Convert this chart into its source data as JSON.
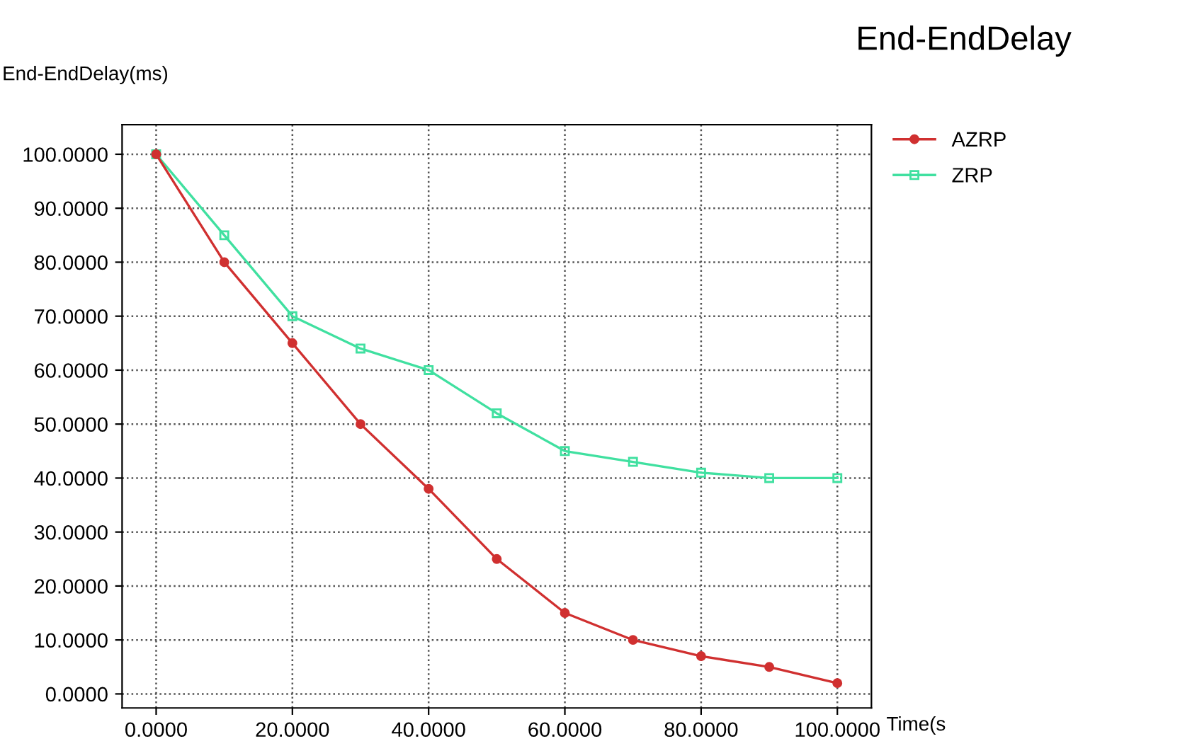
{
  "chart_data": {
    "type": "line",
    "title": "End-EndDelay",
    "ylabel": "End-EndDelay(ms)",
    "xlabel": "Time(s",
    "x": [
      0,
      10,
      20,
      30,
      40,
      50,
      60,
      70,
      80,
      90,
      100
    ],
    "series": [
      {
        "name": "AZRP",
        "color": "#d03030",
        "marker": "circle",
        "values": [
          100,
          80,
          65,
          50,
          38,
          25,
          15,
          10,
          7,
          5,
          2
        ]
      },
      {
        "name": "ZRP",
        "color": "#40e0a0",
        "marker": "square",
        "values": [
          100,
          85,
          70,
          64,
          60,
          52,
          45,
          43,
          41,
          40,
          40
        ]
      }
    ],
    "xlim": [
      -5,
      105
    ],
    "ylim": [
      -2.6,
      105.5
    ],
    "xticks": [
      {
        "value": 0,
        "label": "0.0000"
      },
      {
        "value": 20,
        "label": "20.0000"
      },
      {
        "value": 40,
        "label": "40.0000"
      },
      {
        "value": 60,
        "label": "60.0000"
      },
      {
        "value": 80,
        "label": "80.0000"
      },
      {
        "value": 100,
        "label": "100.0000"
      }
    ],
    "yticks": [
      {
        "value": 0,
        "label": "0.0000"
      },
      {
        "value": 10,
        "label": "10.0000"
      },
      {
        "value": 20,
        "label": "20.0000"
      },
      {
        "value": 30,
        "label": "30.0000"
      },
      {
        "value": 40,
        "label": "40.0000"
      },
      {
        "value": 50,
        "label": "50.0000"
      },
      {
        "value": 60,
        "label": "60.0000"
      },
      {
        "value": 70,
        "label": "70.0000"
      },
      {
        "value": 80,
        "label": "80.0000"
      },
      {
        "value": 90,
        "label": "90.0000"
      },
      {
        "value": 100,
        "label": "100.0000"
      }
    ],
    "grid": true,
    "legend": "top right",
    "line_style": "solid"
  }
}
